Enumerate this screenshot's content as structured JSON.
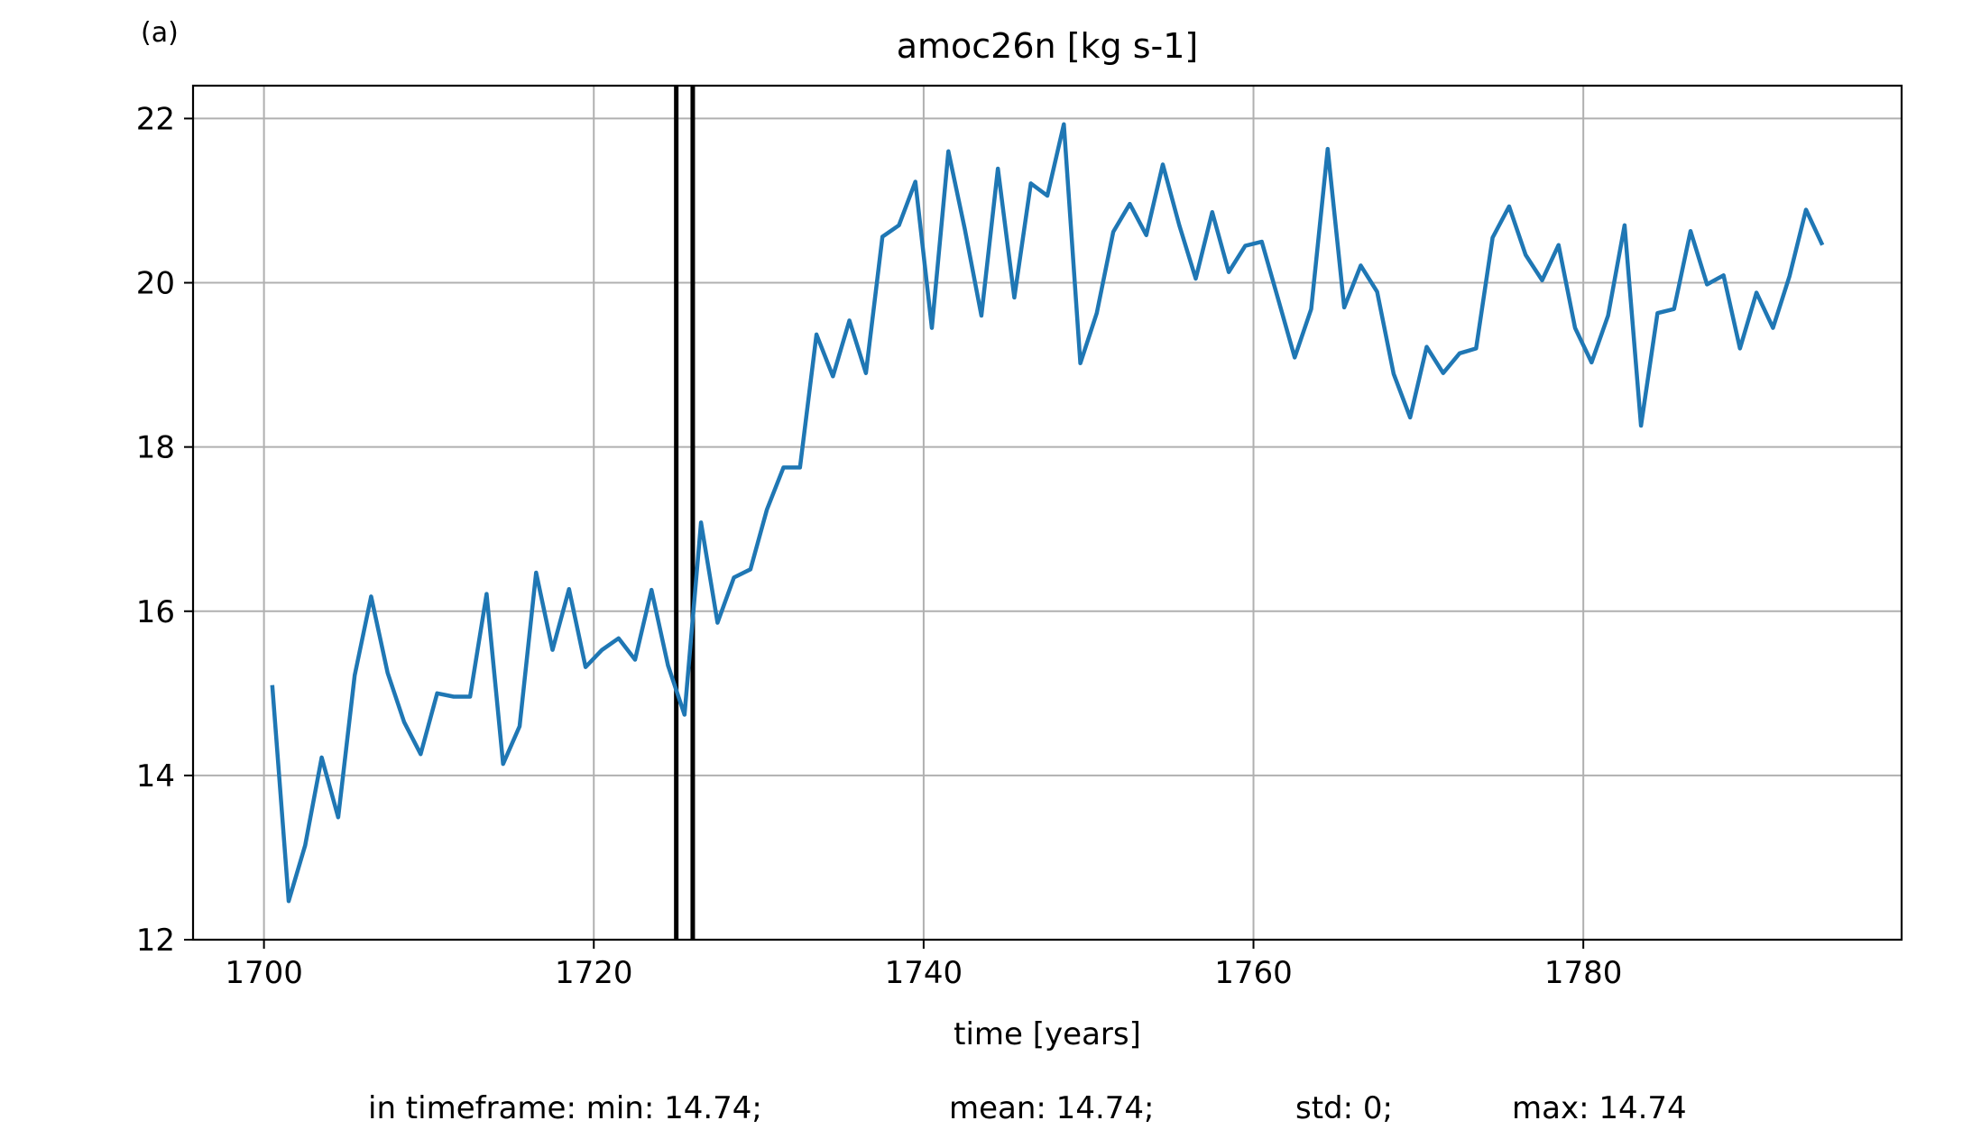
{
  "panel_label": "(a)",
  "chart_data": {
    "type": "line",
    "title": "amoc26n [kg s-1]",
    "xlabel": "time [years]",
    "ylabel": "",
    "xlim": [
      1695.7,
      1799.3
    ],
    "ylim": [
      12,
      22.4
    ],
    "xticks": [
      1700,
      1720,
      1740,
      1760,
      1780
    ],
    "yticks": [
      12,
      14,
      16,
      18,
      20,
      22
    ],
    "grid": true,
    "line_color": "#1f77b4",
    "marker_color": "#000000",
    "vertical_markers": [
      1725.0,
      1726.0
    ],
    "series": [
      {
        "x": [
          1700.5,
          1701.5,
          1702.5,
          1703.5,
          1704.5,
          1705.5,
          1706.5,
          1707.5,
          1708.5,
          1709.5,
          1710.5,
          1711.5,
          1712.5,
          1713.5,
          1714.5,
          1715.5,
          1716.5,
          1717.5,
          1718.5,
          1719.5,
          1720.5,
          1721.5,
          1722.5,
          1723.5,
          1724.5,
          1725.5,
          1726.5,
          1727.5,
          1728.5,
          1729.5,
          1730.5,
          1731.5,
          1732.5,
          1733.5,
          1734.5,
          1735.5,
          1736.5,
          1737.5,
          1738.5,
          1739.5,
          1740.5,
          1741.5,
          1742.5,
          1743.5,
          1744.5,
          1745.5,
          1746.5,
          1747.5,
          1748.5,
          1749.5,
          1750.5,
          1751.5,
          1752.5,
          1753.5,
          1754.5,
          1755.5,
          1756.5,
          1757.5,
          1758.5,
          1759.5,
          1760.5,
          1761.5,
          1762.5,
          1763.5,
          1764.5,
          1765.5,
          1766.5,
          1767.5,
          1768.5,
          1769.5,
          1770.5,
          1771.5,
          1772.5,
          1773.5,
          1774.5,
          1775.5,
          1776.5,
          1777.5,
          1778.5,
          1779.5,
          1780.5,
          1781.5,
          1782.5,
          1783.5,
          1784.5,
          1785.5,
          1786.5,
          1787.5,
          1788.5,
          1789.5,
          1790.5,
          1791.5,
          1792.5,
          1793.5,
          1794.5
        ],
        "y": [
          15.1,
          12.47,
          13.15,
          14.22,
          13.49,
          15.22,
          16.18,
          15.25,
          14.65,
          14.26,
          15.0,
          14.96,
          14.96,
          16.21,
          14.14,
          14.6,
          16.47,
          15.53,
          16.27,
          15.32,
          15.53,
          15.67,
          15.41,
          16.26,
          15.34,
          14.74,
          17.08,
          15.86,
          16.41,
          16.51,
          17.24,
          17.75,
          17.75,
          19.37,
          18.86,
          19.54,
          18.9,
          20.56,
          20.7,
          21.23,
          19.45,
          21.6,
          20.65,
          19.6,
          21.39,
          19.82,
          21.21,
          21.06,
          21.93,
          19.02,
          19.63,
          20.62,
          20.96,
          20.58,
          21.44,
          20.7,
          20.05,
          20.86,
          20.13,
          20.45,
          20.5,
          19.8,
          19.09,
          19.68,
          21.63,
          19.7,
          20.21,
          19.89,
          18.89,
          18.36,
          19.22,
          18.9,
          19.14,
          19.2,
          20.55,
          20.93,
          20.34,
          20.03,
          20.46,
          19.45,
          19.03,
          19.6,
          20.7,
          18.26,
          19.63,
          19.68,
          20.63,
          19.98,
          20.09,
          19.2,
          19.88,
          19.45,
          20.08,
          20.89,
          20.46
        ]
      }
    ]
  },
  "stats": {
    "min": "in timeframe: min: 14.74;",
    "mean": "mean: 14.74;",
    "std": "std: 0;",
    "max": "max: 14.74"
  }
}
